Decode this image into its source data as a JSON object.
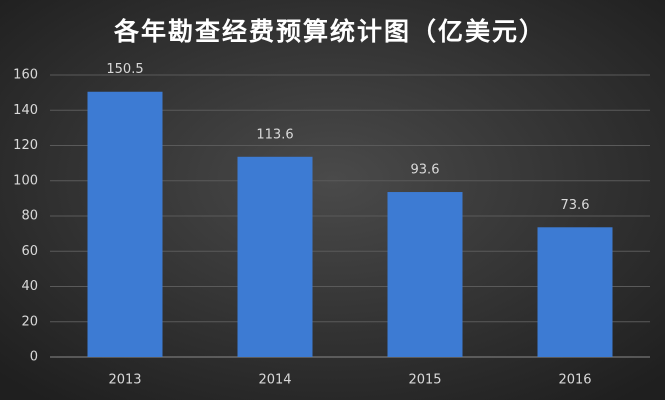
{
  "chart_data": {
    "type": "bar",
    "title": "各年勘查经费预算统计图（亿美元）",
    "categories": [
      "2013",
      "2014",
      "2015",
      "2016"
    ],
    "values": [
      150.5,
      113.6,
      93.6,
      73.6
    ],
    "color": "#3d7bd3",
    "ylim": [
      0,
      160
    ],
    "yticks": [
      0,
      20,
      40,
      60,
      80,
      100,
      120,
      140,
      160
    ],
    "grid": true
  }
}
